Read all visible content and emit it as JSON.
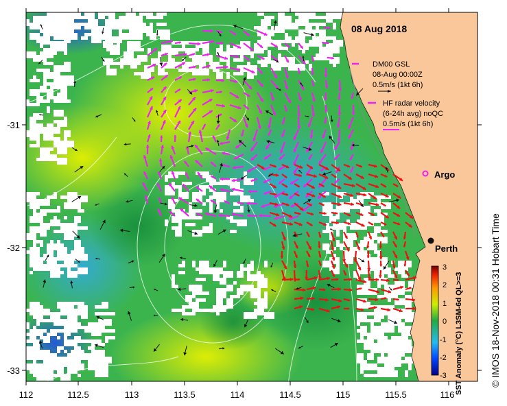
{
  "title": "08 Aug 2018",
  "axes": {
    "x_ticks": [
      "112",
      "112.5",
      "113",
      "113.5",
      "114",
      "114.5",
      "115",
      "115.5",
      "116"
    ],
    "y_ticks": [
      "-31",
      "-32",
      "-33"
    ]
  },
  "legend": {
    "gsl_line1": "DM00 GSL",
    "gsl_line2": "08-Aug 00:00Z",
    "gsl_line3": "0.5m/s (1kt 6h)",
    "hf_line1": "HF radar velocity",
    "hf_line2": "(6-24h avg) noQC",
    "hf_line3": "0.5m/s (1kt 6h)"
  },
  "places": {
    "argo": "Argo",
    "perth": "Perth"
  },
  "colorbar": {
    "ticks": [
      "3",
      "2",
      "1",
      "0",
      "-1",
      "-2",
      "-3"
    ],
    "label": "SST Anomaly (°C) L3SM-6d QL>=3",
    "colors": [
      "#000088",
      "#0044ff",
      "#22bbee",
      "#22aa44",
      "#ccee00",
      "#ff9900",
      "#ee2200",
      "#770000"
    ]
  },
  "credit": "© IMOS 18-Nov-2018 00:31 Hobart Time",
  "colors": {
    "land": "#f9c79a",
    "radar_vector": "#ee1111",
    "gsl_vector": "#ee22ee",
    "argo": "#ee22ee"
  }
}
